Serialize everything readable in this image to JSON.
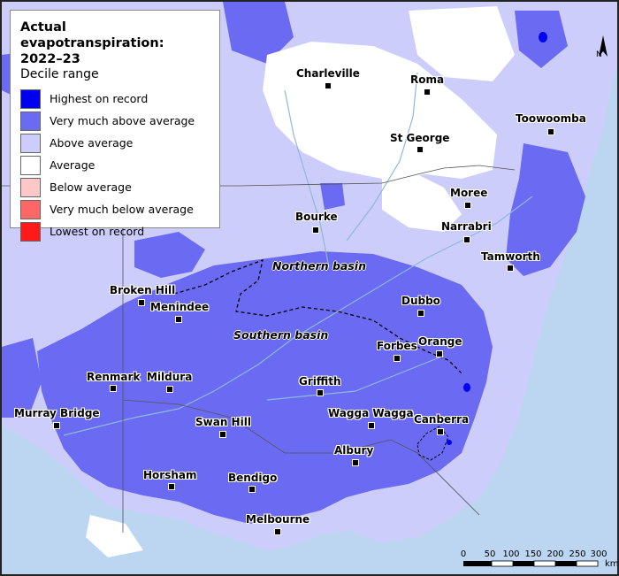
{
  "legend": {
    "title": "Actual evapotranspiration:",
    "period": "2022–23",
    "subtitle": "Decile range",
    "items": [
      {
        "label": "Highest on record",
        "color": "#0000f0"
      },
      {
        "label": "Very much above average",
        "color": "#6a6af2"
      },
      {
        "label": "Above average",
        "color": "#cccdfa"
      },
      {
        "label": "Average",
        "color": "#ffffff"
      },
      {
        "label": "Below average",
        "color": "#ffc8c8"
      },
      {
        "label": "Very much below average",
        "color": "#ff6666"
      },
      {
        "label": "Lowest on record",
        "color": "#ff1a1a"
      }
    ]
  },
  "basins": {
    "northern": "Northern basin",
    "southern": "Southern basin"
  },
  "places": [
    {
      "name": "Charleville"
    },
    {
      "name": "Roma"
    },
    {
      "name": "Toowoomba"
    },
    {
      "name": "St George"
    },
    {
      "name": "Moree"
    },
    {
      "name": "Narrabri"
    },
    {
      "name": "Bourke"
    },
    {
      "name": "Tamworth"
    },
    {
      "name": "Broken Hill"
    },
    {
      "name": "Menindee"
    },
    {
      "name": "Dubbo"
    },
    {
      "name": "Forbes"
    },
    {
      "name": "Orange"
    },
    {
      "name": "Renmark"
    },
    {
      "name": "Mildura"
    },
    {
      "name": "Griffith"
    },
    {
      "name": "Wagga Wagga"
    },
    {
      "name": "Canberra"
    },
    {
      "name": "Murray Bridge"
    },
    {
      "name": "Swan Hill"
    },
    {
      "name": "Albury"
    },
    {
      "name": "Horsham"
    },
    {
      "name": "Bendigo"
    },
    {
      "name": "Melbourne"
    }
  ],
  "scale_bar": {
    "ticks": [
      "0",
      "50",
      "100",
      "150",
      "200",
      "250",
      "300"
    ],
    "unit": "km"
  },
  "north_arrow": {
    "label": "N"
  },
  "colors": {
    "ocean": "#bcd6f2",
    "land_outside": "#e9ecf1",
    "very_much_above": "#6a6af2",
    "above": "#cccdfa",
    "average": "#ffffff",
    "highest": "#0000f0",
    "rivers": "#8fb8dc"
  }
}
